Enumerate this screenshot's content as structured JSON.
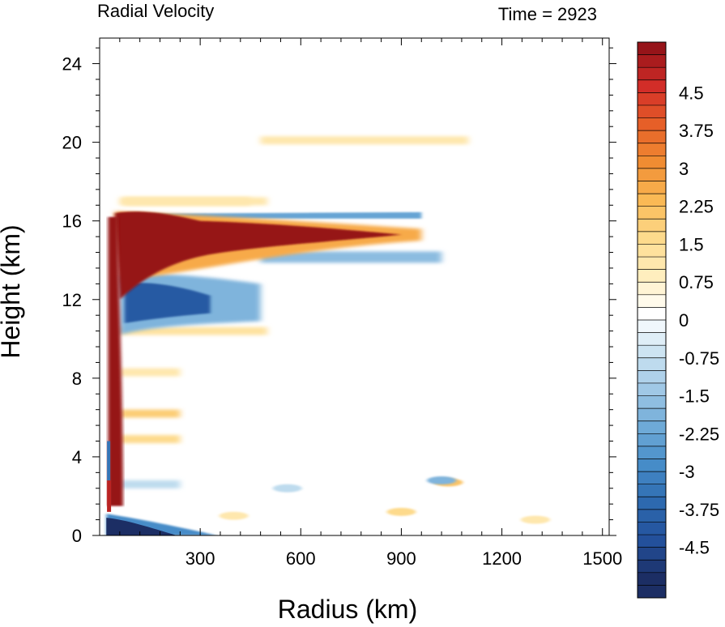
{
  "title_left": "Radial Velocity",
  "title_right": "Time = 2923",
  "chart_data": {
    "type": "heatmap",
    "title": "Radial Velocity",
    "time_label": "Time = 2923",
    "xlabel": "Radius (km)",
    "ylabel": "Height (km)",
    "xlim": [
      0,
      1520
    ],
    "ylim": [
      0,
      25.3
    ],
    "x_ticks": [
      300,
      600,
      900,
      1200,
      1500
    ],
    "y_ticks": [
      0,
      4,
      8,
      12,
      16,
      20,
      24
    ],
    "colorbar": {
      "min": -5.25,
      "max": 5.25,
      "step": 0.25,
      "labels": [
        "4.5",
        "3.75",
        "3",
        "2.25",
        "1.5",
        "0.75",
        "0",
        "-0.75",
        "-1.5",
        "-2.25",
        "-3",
        "-3.75",
        "-4.5"
      ],
      "label_values": [
        4.5,
        3.75,
        3,
        2.25,
        1.5,
        0.75,
        0,
        -0.75,
        -1.5,
        -2.25,
        -3,
        -3.75,
        -4.5
      ]
    },
    "features": [
      {
        "kind": "outflow",
        "r0": 40,
        "r1": 900,
        "z": 15.3,
        "value": 5.25
      },
      {
        "kind": "inflow-upper",
        "r0": 60,
        "r1": 480,
        "z": 11.9,
        "value": -4.2
      },
      {
        "kind": "inflow-boundary",
        "r0": 20,
        "r1": 350,
        "z": 0.4,
        "value": -5.25
      },
      {
        "kind": "eyewall",
        "r0": 25,
        "r1": 70,
        "z0": 1.5,
        "z1": 16.2,
        "value": 5.25
      },
      {
        "kind": "upper-inflow",
        "r0": 100,
        "r1": 960,
        "z": 16.2,
        "value": -2.4
      },
      {
        "kind": "lower-inflow",
        "r0": 480,
        "r1": 1020,
        "z": 14.2,
        "value": -1.8
      },
      {
        "kind": "weak-bands",
        "z": [
          20.1,
          17.0,
          10.4,
          8.3,
          6.2,
          4.9,
          2.6
        ],
        "value": [
          1.0,
          1.0,
          1.2,
          1.0,
          1.8,
          1.5,
          -1.0
        ]
      }
    ]
  }
}
